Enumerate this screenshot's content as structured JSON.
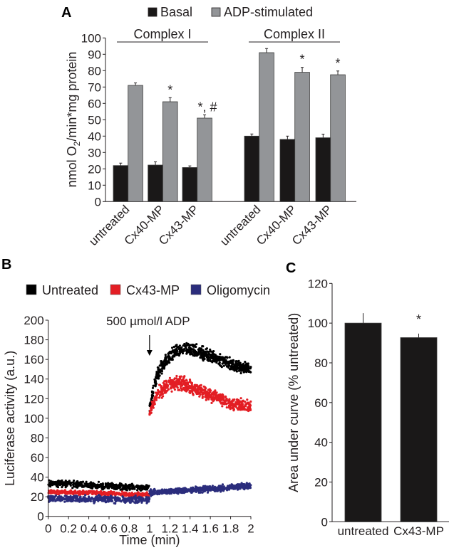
{
  "chart_data": [
    {
      "type": "bar",
      "panel_label": "A",
      "legend": [
        "Basal",
        "ADP-stimulated"
      ],
      "legend_placement": "top",
      "groups": [
        "Complex I",
        "Complex II"
      ],
      "categories": [
        "untreated",
        "Cx40-MP",
        "Cx43-MP",
        "untreated",
        "Cx40-MP",
        "Cx43-MP"
      ],
      "series": [
        {
          "name": "Basal",
          "color": "#1a1818",
          "values": [
            22,
            22.3,
            20.8,
            40,
            38,
            39
          ],
          "errors": [
            1.5,
            2,
            1,
            1.3,
            2,
            2.2
          ]
        },
        {
          "name": "ADP-stimulated",
          "color": "#939598",
          "values": [
            71,
            61,
            51,
            91,
            79,
            77.5
          ],
          "errors": [
            1.5,
            2.5,
            2,
            2.5,
            3,
            2.3
          ]
        }
      ],
      "annotations": [
        "",
        "*",
        "*, #",
        "",
        "*",
        "*"
      ],
      "ylabel": "nmol O2/min*mg protein",
      "ylabel_main": "nmol O",
      "ylabel_sub": "2",
      "ylabel_rest": "/min*mg protein",
      "ylim": [
        0,
        100
      ],
      "yticks": [
        "0",
        "10",
        "20",
        "30",
        "40",
        "50",
        "60",
        "70",
        "80",
        "90",
        "100"
      ]
    },
    {
      "type": "scatter",
      "panel_label": "B",
      "legend": [
        "Untreated",
        "Cx43-MP",
        "Oligomycin"
      ],
      "legend_placement": "top",
      "series": [
        {
          "name": "Untreated",
          "color": "#000000",
          "x": [
            0,
            1,
            1.0,
            1.05,
            1.1,
            1.2,
            1.3,
            1.4,
            1.6,
            1.8,
            2.0
          ],
          "y": [
            34,
            29,
            110,
            135,
            150,
            163,
            170,
            170,
            163,
            155,
            150
          ],
          "spread": [
            5,
            4,
            6,
            10,
            10,
            10,
            9,
            9,
            9,
            9,
            9
          ]
        },
        {
          "name": "Cx43-MP",
          "color": "#e31e24",
          "x": [
            0,
            1,
            1.0,
            1.05,
            1.1,
            1.2,
            1.3,
            1.4,
            1.6,
            1.8,
            2.0
          ],
          "y": [
            25,
            22,
            105,
            118,
            127,
            135,
            136,
            132,
            124,
            115,
            112
          ],
          "spread": [
            3,
            3,
            5,
            9,
            10,
            10,
            10,
            10,
            9,
            9,
            8
          ]
        },
        {
          "name": "Oligomycin",
          "color": "#2b2d7c",
          "x": [
            0,
            1,
            1.0,
            2.0
          ],
          "y": [
            18,
            17,
            24,
            31
          ],
          "spread": [
            5,
            5,
            4,
            4
          ]
        }
      ],
      "annotation": "500 µmol/l ADP",
      "annotation_x": 1,
      "xlabel": "Time (min)",
      "ylabel": "Luciferase activity (a.u.)",
      "xlim": [
        0,
        2
      ],
      "ylim": [
        0,
        200
      ],
      "xticks": [
        "0",
        "0.2",
        "0.4",
        "0.6",
        "0.8",
        "1",
        "1.2",
        "1.4",
        "1.6",
        "1.8",
        "2"
      ],
      "yticks": [
        "0",
        "20",
        "40",
        "60",
        "80",
        "100",
        "120",
        "140",
        "160",
        "180",
        "200"
      ]
    },
    {
      "type": "bar",
      "panel_label": "C",
      "categories": [
        "untreated",
        "Cx43-MP"
      ],
      "values": [
        100,
        92.7
      ],
      "errors": [
        5,
        2
      ],
      "annotations": [
        "",
        "*"
      ],
      "color": "#1a1818",
      "ylabel": "Area under curve (% untreated)",
      "ylim": [
        0,
        120
      ],
      "yticks": [
        "0",
        "20",
        "40",
        "60",
        "80",
        "100",
        "120"
      ]
    }
  ]
}
